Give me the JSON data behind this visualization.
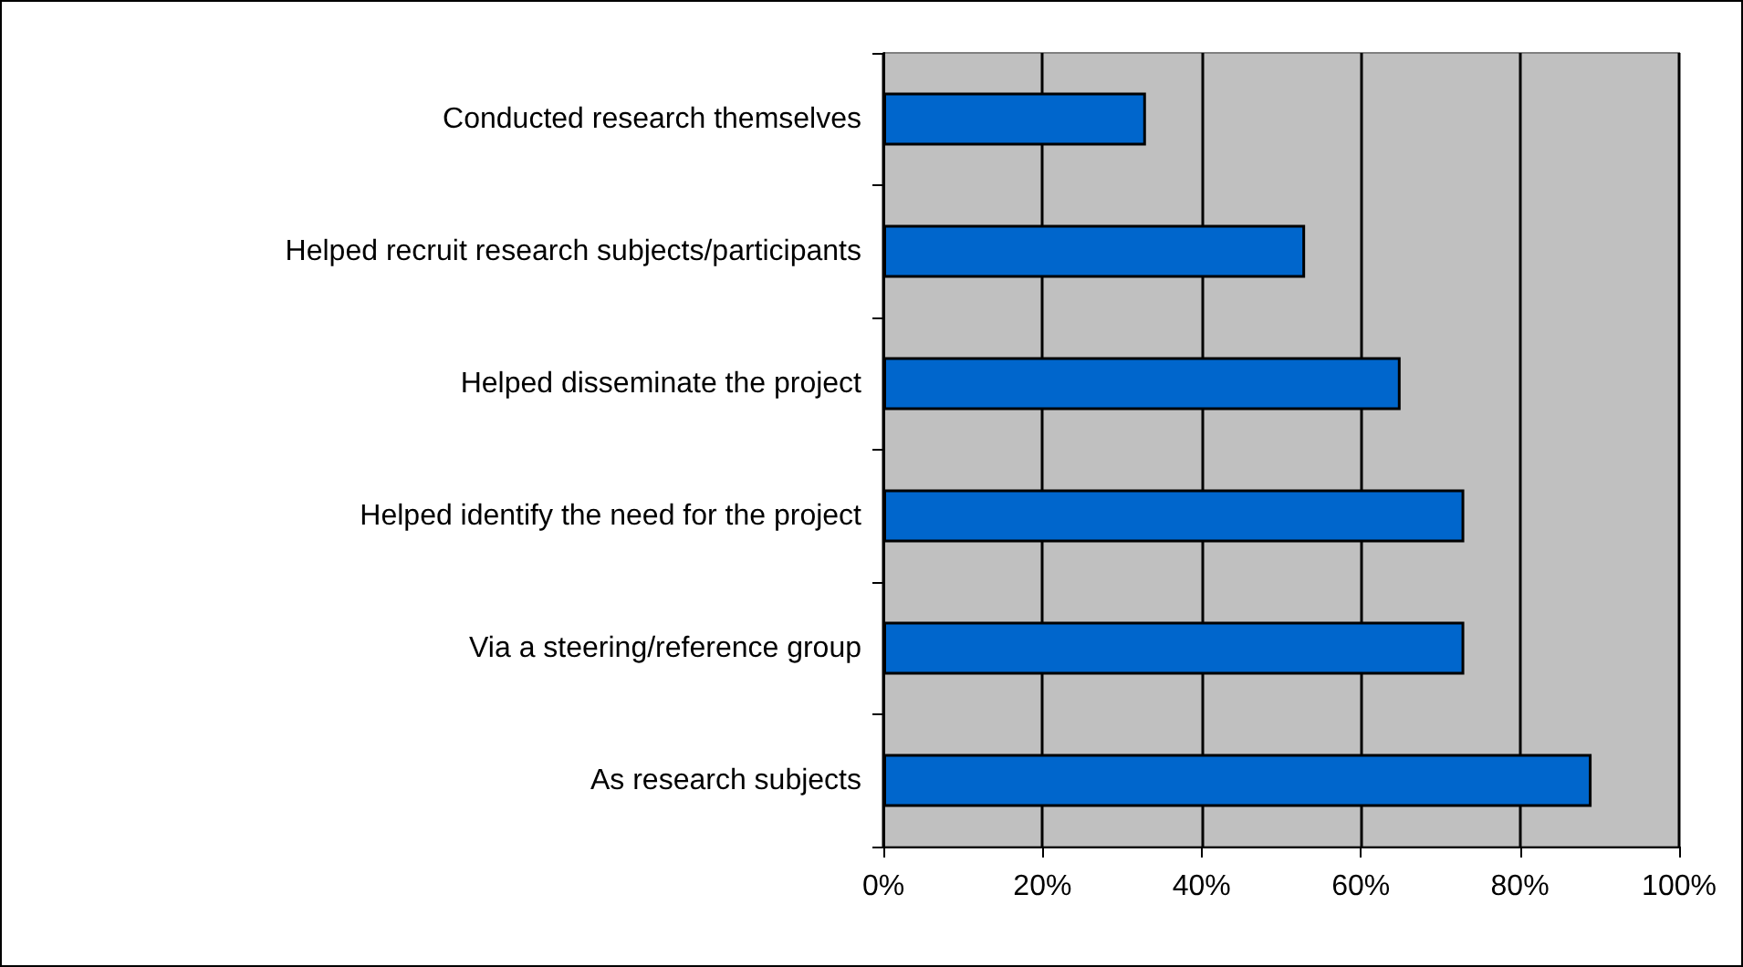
{
  "chart_data": {
    "type": "bar",
    "orientation": "horizontal",
    "categories": [
      "Conducted research themselves",
      "Helped recruit research subjects/participants",
      "Helped disseminate the project",
      "Helped identify the need for the project",
      "Via a steering/reference group",
      "As research subjects"
    ],
    "values": [
      33,
      53,
      65,
      73,
      73,
      89
    ],
    "color": "#0066cc",
    "xlim": [
      0,
      100
    ],
    "xticks": [
      {
        "value": 0,
        "label": "0%"
      },
      {
        "value": 20,
        "label": "20%"
      },
      {
        "value": 40,
        "label": "40%"
      },
      {
        "value": 60,
        "label": "60%"
      },
      {
        "value": 80,
        "label": "80%"
      },
      {
        "value": 100,
        "label": "100%"
      }
    ],
    "grid": "x"
  }
}
